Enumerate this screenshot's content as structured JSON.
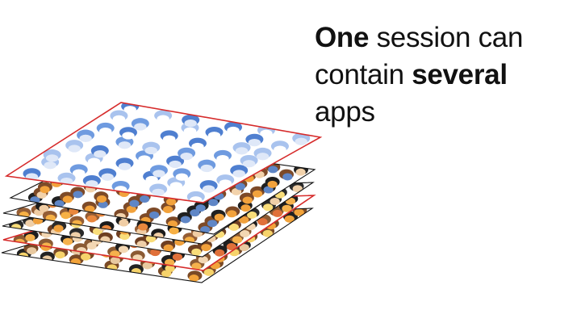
{
  "caption": {
    "part1_bold": "One",
    "part2": " session can contain ",
    "part3_bold": "several",
    "part4": " apps"
  },
  "diagram": {
    "description_layers": [
      {
        "role": "layer-bottom-1",
        "border": "#111111",
        "palette": [
          "#f2a33a",
          "#7a4a26",
          "#e8c9a0",
          "#222222",
          "#f6d36b"
        ]
      },
      {
        "role": "layer-bottom-2",
        "border": "#d62b2b",
        "palette": [
          "#f5b14c",
          "#8b5a33",
          "#f3d7b3",
          "#1e1e1e",
          "#e0703a"
        ]
      },
      {
        "role": "layer-bottom-3",
        "border": "#111111",
        "palette": [
          "#f0a03b",
          "#6e3f22",
          "#efcfa8",
          "#2a2a2a",
          "#f9dd7a"
        ]
      },
      {
        "role": "layer-bottom-4",
        "border": "#111111",
        "palette": [
          "#f6b045",
          "#945d35",
          "#f0cda4",
          "#1b1b1b",
          "#e9873d"
        ]
      },
      {
        "role": "layer-mid",
        "border": "#111111",
        "palette": [
          "#f2a23c",
          "#7d4a28",
          "#f2d2ab",
          "#202020",
          "#5f86c6"
        ]
      },
      {
        "role": "layer-top-selected",
        "border": "#d62b2b",
        "palette": [
          "#4f7fd0",
          "#6f9be0",
          "#a9c3ee",
          "#dfe8f8",
          "#ffffff"
        ]
      }
    ]
  }
}
